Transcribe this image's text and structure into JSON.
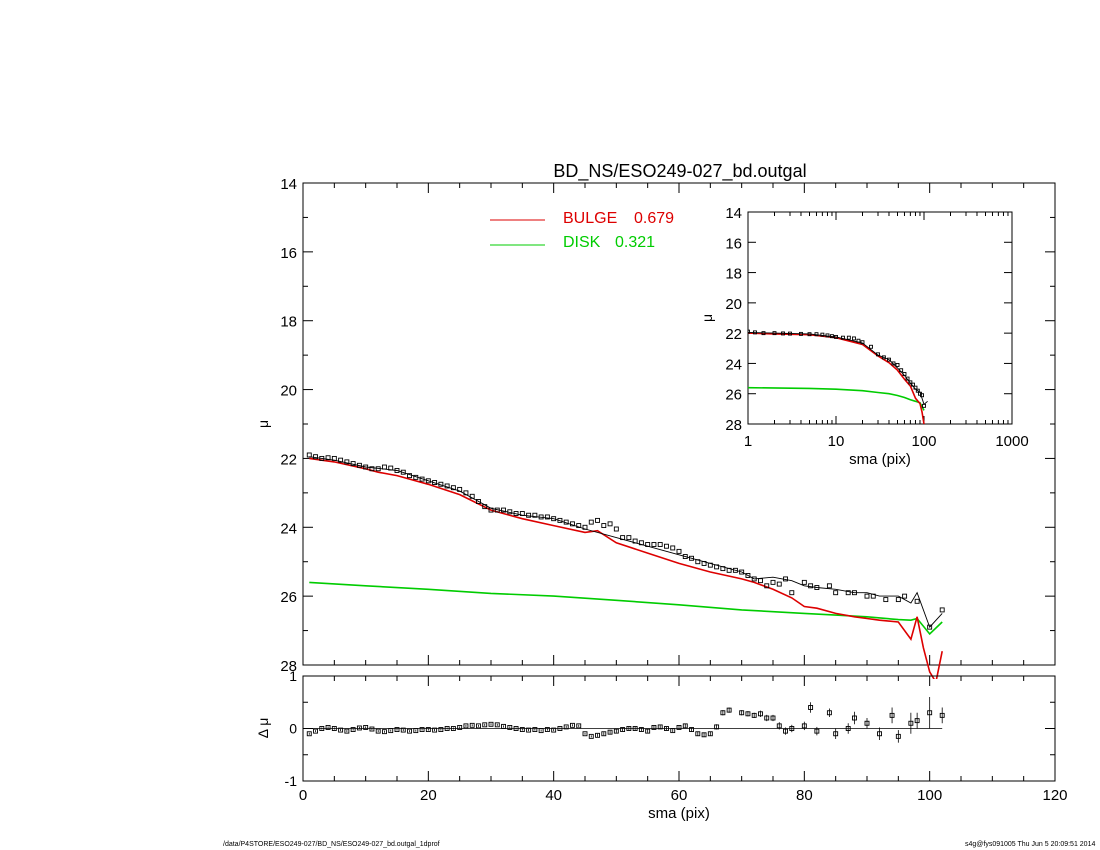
{
  "chart_data": [
    {
      "panel": "main",
      "type": "line",
      "title": "BD_NS/ESO249-027_bd.outgal",
      "xlabel": "sma (pix)",
      "ylabel": "μ",
      "xlim": [
        0,
        120
      ],
      "ylim": [
        28,
        14
      ],
      "y_inverted": true,
      "xticks": [
        "0",
        "20",
        "40",
        "60",
        "80",
        "100",
        "120"
      ],
      "yticks": [
        "14",
        "16",
        "18",
        "20",
        "22",
        "24",
        "26",
        "28"
      ],
      "legend": {
        "placement": "top-center",
        "entries": [
          {
            "label": "BULGE",
            "value": "0.679",
            "color": "#dd0000"
          },
          {
            "label": "DISK",
            "value": "0.321",
            "color": "#00cc00"
          }
        ]
      },
      "series": [
        {
          "name": "data",
          "style": "squares",
          "color": "#000000",
          "x": [
            1,
            2,
            3,
            4,
            5,
            6,
            7,
            8,
            9,
            10,
            11,
            12,
            13,
            14,
            15,
            16,
            17,
            18,
            19,
            20,
            21,
            22,
            23,
            24,
            25,
            26,
            27,
            28,
            29,
            30,
            31,
            32,
            33,
            34,
            35,
            36,
            37,
            38,
            39,
            40,
            41,
            42,
            43,
            44,
            45,
            46,
            47,
            48,
            49,
            50,
            51,
            52,
            53,
            54,
            55,
            56,
            57,
            58,
            59,
            60,
            61,
            62,
            63,
            64,
            65,
            66,
            67,
            68,
            69,
            70,
            71,
            72,
            73,
            74,
            75,
            76,
            77,
            78,
            80,
            81,
            82,
            84,
            85,
            87,
            88,
            90,
            91,
            93,
            95,
            96,
            98,
            100,
            102
          ],
          "y": [
            21.9,
            21.95,
            22.0,
            21.98,
            22.0,
            22.05,
            22.1,
            22.15,
            22.2,
            22.25,
            22.3,
            22.3,
            22.25,
            22.28,
            22.35,
            22.4,
            22.5,
            22.55,
            22.6,
            22.65,
            22.7,
            22.75,
            22.8,
            22.85,
            22.9,
            23.0,
            23.1,
            23.25,
            23.4,
            23.5,
            23.5,
            23.5,
            23.55,
            23.6,
            23.6,
            23.65,
            23.65,
            23.7,
            23.7,
            23.75,
            23.8,
            23.85,
            23.9,
            23.95,
            24.0,
            23.85,
            23.8,
            23.95,
            23.9,
            24.05,
            24.3,
            24.3,
            24.4,
            24.45,
            24.5,
            24.5,
            24.5,
            24.55,
            24.6,
            24.7,
            24.85,
            24.9,
            25.0,
            25.05,
            25.1,
            25.15,
            25.2,
            25.25,
            25.25,
            25.3,
            25.4,
            25.5,
            25.55,
            25.7,
            25.6,
            25.65,
            25.5,
            25.9,
            25.6,
            25.7,
            25.75,
            25.7,
            25.9,
            25.9,
            25.9,
            26.0,
            26.0,
            26.1,
            26.1,
            26.0,
            26.15,
            26.9,
            26.4
          ]
        },
        {
          "name": "model",
          "style": "line",
          "color": "#000000",
          "x": [
            1,
            5,
            10,
            15,
            20,
            25,
            30,
            35,
            40,
            45,
            50,
            55,
            60,
            65,
            70,
            72,
            75,
            78,
            80,
            82,
            85,
            88,
            90,
            92,
            95,
            97,
            98,
            100,
            102
          ],
          "y": [
            21.95,
            22.05,
            22.25,
            22.35,
            22.65,
            22.95,
            23.45,
            23.65,
            23.75,
            24.05,
            24.3,
            24.55,
            24.8,
            25.05,
            25.3,
            25.5,
            25.45,
            25.55,
            25.7,
            25.75,
            25.8,
            25.9,
            25.9,
            26.0,
            26.0,
            26.2,
            25.9,
            26.9,
            26.5
          ]
        },
        {
          "name": "BULGE",
          "style": "line",
          "color": "#dd0000",
          "x": [
            1,
            5,
            10,
            12,
            15,
            20,
            25,
            30,
            35,
            40,
            45,
            47,
            50,
            55,
            60,
            65,
            70,
            72,
            75,
            78,
            80,
            82,
            85,
            88,
            90,
            92,
            95,
            97,
            98,
            99,
            100,
            101,
            102
          ],
          "y": [
            22.0,
            22.1,
            22.3,
            22.4,
            22.5,
            22.75,
            23.05,
            23.5,
            23.75,
            23.95,
            24.15,
            24.1,
            24.45,
            24.75,
            25.05,
            25.3,
            25.5,
            25.6,
            25.8,
            26.05,
            26.3,
            26.35,
            26.5,
            26.6,
            26.65,
            26.7,
            26.75,
            27.25,
            26.6,
            27.5,
            28.2,
            28.5,
            27.6
          ]
        },
        {
          "name": "DISK",
          "style": "line",
          "color": "#00cc00",
          "x": [
            1,
            10,
            20,
            30,
            40,
            50,
            60,
            70,
            80,
            85,
            90,
            95,
            97,
            98,
            100,
            102
          ],
          "y": [
            25.6,
            25.7,
            25.8,
            25.92,
            26.0,
            26.12,
            26.25,
            26.4,
            26.5,
            26.55,
            26.6,
            26.68,
            26.7,
            26.65,
            27.1,
            26.75
          ]
        }
      ]
    },
    {
      "panel": "residual",
      "type": "scatter",
      "xlabel": "sma (pix)",
      "ylabel": "Δ μ",
      "xlim": [
        0,
        120
      ],
      "ylim": [
        -1,
        1
      ],
      "xticks": [
        "0",
        "20",
        "40",
        "60",
        "80",
        "100",
        "120"
      ],
      "yticks": [
        "-1",
        "0",
        "1"
      ],
      "series": [
        {
          "name": "residual",
          "style": "squares-errorbars",
          "color": "#000000",
          "x": [
            1,
            2,
            3,
            4,
            5,
            6,
            7,
            8,
            9,
            10,
            11,
            12,
            13,
            14,
            15,
            16,
            17,
            18,
            19,
            20,
            21,
            22,
            23,
            24,
            25,
            26,
            27,
            28,
            29,
            30,
            31,
            32,
            33,
            34,
            35,
            36,
            37,
            38,
            39,
            40,
            41,
            42,
            43,
            44,
            45,
            46,
            47,
            48,
            49,
            50,
            51,
            52,
            53,
            54,
            55,
            56,
            57,
            58,
            59,
            60,
            61,
            62,
            63,
            64,
            65,
            66,
            67,
            68,
            70,
            71,
            72,
            73,
            74,
            75,
            76,
            77,
            78,
            80,
            81,
            82,
            84,
            85,
            87,
            88,
            90,
            92,
            94,
            95,
            97,
            98,
            100,
            102
          ],
          "y": [
            -0.1,
            -0.05,
            0.0,
            0.02,
            0.0,
            -0.03,
            -0.05,
            -0.02,
            0.01,
            0.02,
            -0.01,
            -0.05,
            -0.06,
            -0.04,
            -0.02,
            -0.03,
            -0.05,
            -0.04,
            -0.02,
            -0.02,
            -0.03,
            -0.02,
            0.0,
            0.0,
            0.02,
            0.05,
            0.06,
            0.05,
            0.07,
            0.08,
            0.07,
            0.04,
            0.02,
            0.0,
            -0.02,
            -0.03,
            -0.02,
            -0.04,
            -0.02,
            -0.03,
            0.0,
            0.03,
            0.06,
            0.05,
            -0.1,
            -0.15,
            -0.13,
            -0.1,
            -0.07,
            -0.05,
            -0.02,
            0.0,
            0.0,
            -0.02,
            -0.05,
            0.02,
            0.03,
            0.0,
            -0.04,
            0.02,
            0.05,
            -0.02,
            -0.1,
            -0.12,
            -0.1,
            0.03,
            0.3,
            0.35,
            0.3,
            0.28,
            0.25,
            0.28,
            0.2,
            0.2,
            0.05,
            -0.05,
            0.0,
            0.05,
            0.4,
            -0.05,
            0.3,
            -0.1,
            0.0,
            0.2,
            0.1,
            -0.1,
            0.25,
            -0.15,
            0.1,
            0.15,
            0.3,
            0.25
          ],
          "err": [
            0.02,
            0.02,
            0.02,
            0.02,
            0.02,
            0.02,
            0.02,
            0.02,
            0.02,
            0.02,
            0.02,
            0.02,
            0.02,
            0.02,
            0.02,
            0.02,
            0.02,
            0.02,
            0.02,
            0.02,
            0.02,
            0.02,
            0.02,
            0.02,
            0.02,
            0.02,
            0.02,
            0.02,
            0.02,
            0.02,
            0.02,
            0.02,
            0.02,
            0.02,
            0.02,
            0.02,
            0.02,
            0.02,
            0.02,
            0.02,
            0.02,
            0.02,
            0.02,
            0.02,
            0.02,
            0.02,
            0.03,
            0.03,
            0.03,
            0.03,
            0.03,
            0.03,
            0.03,
            0.03,
            0.03,
            0.03,
            0.03,
            0.03,
            0.03,
            0.03,
            0.04,
            0.04,
            0.04,
            0.04,
            0.04,
            0.05,
            0.05,
            0.05,
            0.05,
            0.05,
            0.05,
            0.06,
            0.06,
            0.06,
            0.07,
            0.07,
            0.07,
            0.08,
            0.1,
            0.08,
            0.08,
            0.1,
            0.1,
            0.12,
            0.1,
            0.12,
            0.15,
            0.12,
            0.2,
            0.15,
            0.3,
            0.15
          ]
        }
      ]
    },
    {
      "panel": "inset",
      "type": "line",
      "xlabel": "sma (pix)",
      "ylabel": "μ",
      "xscale": "log",
      "xlim": [
        1,
        1000
      ],
      "ylim": [
        28,
        14
      ],
      "y_inverted": true,
      "xticks": [
        "1",
        "10",
        "100",
        "1000"
      ],
      "yticks": [
        "14",
        "16",
        "18",
        "20",
        "22",
        "24",
        "26",
        "28"
      ],
      "series": [
        {
          "name": "data",
          "style": "squares",
          "color": "#000000",
          "x": [
            1,
            1.2,
            1.5,
            2,
            2.5,
            3,
            4,
            5,
            6,
            7,
            8,
            9,
            10,
            12,
            14,
            16,
            18,
            20,
            25,
            30,
            35,
            40,
            45,
            50,
            55,
            60,
            65,
            70,
            75,
            80,
            85,
            90,
            95,
            100
          ],
          "y": [
            21.9,
            21.95,
            22.0,
            22.0,
            22.02,
            22.03,
            22.05,
            22.07,
            22.07,
            22.1,
            22.15,
            22.2,
            22.25,
            22.3,
            22.3,
            22.35,
            22.5,
            22.6,
            22.9,
            23.4,
            23.6,
            23.75,
            24.0,
            24.1,
            24.45,
            24.7,
            25.0,
            25.25,
            25.4,
            25.6,
            25.8,
            26.0,
            26.1,
            26.8
          ]
        },
        {
          "name": "model",
          "style": "line",
          "color": "#000000",
          "x": [
            1,
            2,
            5,
            10,
            20,
            30,
            40,
            50,
            60,
            70,
            80,
            90,
            100,
            110
          ],
          "y": [
            21.95,
            22.0,
            22.05,
            22.25,
            22.65,
            23.45,
            23.75,
            24.3,
            24.8,
            25.3,
            25.7,
            25.9,
            26.7,
            26.5
          ]
        },
        {
          "name": "BULGE",
          "style": "line",
          "color": "#dd0000",
          "x": [
            1,
            2,
            5,
            10,
            20,
            30,
            40,
            50,
            60,
            70,
            80,
            90,
            95,
            100
          ],
          "y": [
            22.0,
            22.05,
            22.1,
            22.3,
            22.75,
            23.5,
            23.95,
            24.45,
            25.05,
            25.5,
            26.3,
            26.65,
            27.2,
            28.0
          ]
        },
        {
          "name": "DISK",
          "style": "line",
          "color": "#00cc00",
          "x": [
            1,
            5,
            10,
            20,
            30,
            40,
            50,
            60,
            70,
            80,
            90,
            100
          ],
          "y": [
            25.6,
            25.65,
            25.7,
            25.8,
            25.92,
            26.0,
            26.12,
            26.25,
            26.4,
            26.5,
            26.6,
            27.1
          ]
        }
      ]
    }
  ],
  "footer": {
    "left": "/data/P4STORE/ESO249-027/BD_NS/ESO249-027_bd.outgal_1dprof",
    "right": "s4g@fys091005  Thu Jun  5 20:09:51 2014"
  }
}
